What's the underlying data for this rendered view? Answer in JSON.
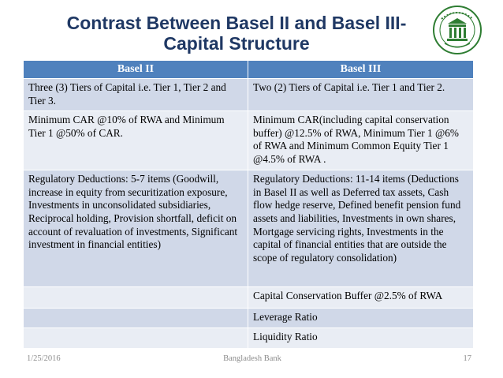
{
  "title": {
    "line1": "Contrast Between Basel II and Basel III-",
    "line2": "Capital Structure"
  },
  "logo": {
    "icon": "bangladesh-bank-seal-icon",
    "color": "#2e7d32"
  },
  "table": {
    "headers": [
      "Basel II",
      "Basel III"
    ],
    "rows": [
      {
        "basel2": "Three (3) Tiers of Capital i.e. Tier 1, Tier 2 and Tier 3.",
        "basel3": "Two (2) Tiers of Capital i.e. Tier 1 and Tier 2."
      },
      {
        "basel2": "Minimum CAR @10% of RWA and Minimum Tier 1 @50% of CAR.",
        "basel3": "Minimum CAR(including capital conservation buffer) @12.5% of RWA, Minimum Tier 1 @6% of RWA and Minimum Common Equity Tier 1 @4.5% of RWA ."
      },
      {
        "basel2": "Regulatory Deductions: 5-7  items (Goodwill, increase in equity from securitization exposure, Investments in unconsolidated subsidiaries, Reciprocal holding, Provision shortfall, deficit on account of revaluation of investments, Significant investment in financial entities)",
        "basel3": "Regulatory Deductions: 11-14  items (Deductions in Basel II as well as Deferred tax assets, Cash flow hedge reserve, Defined benefit pension fund assets and liabilities, Investments in own shares, Mortgage servicing rights, Investments in the capital of financial entities that are outside the scope of regulatory consolidation)"
      },
      {
        "basel2": "",
        "basel3": "Capital Conservation Buffer @2.5% of RWA"
      },
      {
        "basel2": "",
        "basel3": "Leverage Ratio"
      },
      {
        "basel2": "",
        "basel3": "Liquidity Ratio"
      }
    ]
  },
  "footer": {
    "date": "1/25/2016",
    "center": "Bangladesh Bank",
    "page": "17"
  },
  "colors": {
    "title": "#1f3864",
    "header_bg": "#4f81bd",
    "row_dark": "#d0d8e8",
    "row_light": "#e9edf4"
  }
}
